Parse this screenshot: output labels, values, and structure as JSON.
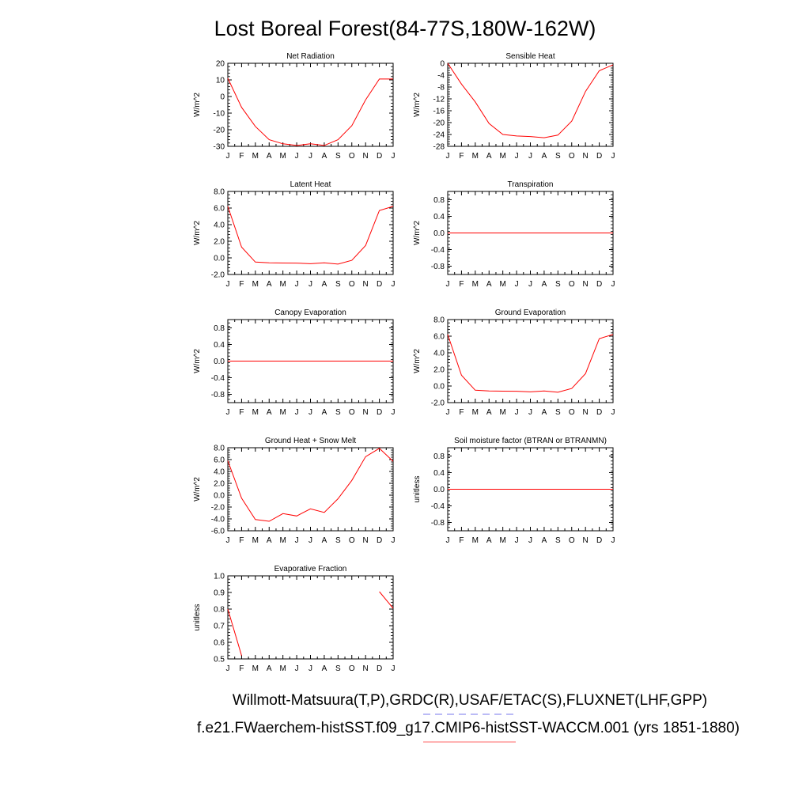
{
  "title": "Lost Boreal Forest(84-77S,180W-162W)",
  "footer": {
    "line1": "Willmott-Matsuura(T,P),GRDC(R),USAF/ETAC(S),FLUXNET(LHF,GPP)",
    "line2": "f.e21.FWaerchem-histSST.f09_g17.CMIP6-histSST-WACCM.001 (yrs 1851-1880)",
    "obs_line_color": "#7777ee",
    "model_line_color": "#ff6666"
  },
  "colors": {
    "series": "#ff0000",
    "axis": "#000000"
  },
  "month_labels": [
    "J",
    "F",
    "M",
    "A",
    "M",
    "J",
    "J",
    "A",
    "S",
    "O",
    "N",
    "D",
    "J"
  ],
  "chart_data": [
    {
      "type": "line",
      "title": "Net Radiation",
      "ylabel": "W/m^2",
      "ylim": [
        -30,
        20
      ],
      "yticks": [
        20,
        10,
        0,
        -10,
        -20,
        -30
      ],
      "ytick_labels": [
        "20",
        "10",
        "0",
        "-10",
        "-20",
        "-30"
      ],
      "x": [
        0,
        1,
        2,
        3,
        4,
        5,
        6,
        7,
        8,
        9,
        10,
        11,
        12
      ],
      "values": [
        11,
        -6.5,
        -18,
        -26,
        -28.5,
        -29.5,
        -28.5,
        -29.5,
        -26,
        -17.5,
        -2,
        10.5,
        10.5
      ]
    },
    {
      "type": "line",
      "title": "Sensible Heat",
      "ylabel": "W/m^2",
      "ylim": [
        -28,
        0
      ],
      "yticks": [
        0,
        -4,
        -8,
        -12,
        -16,
        -20,
        -24,
        -28
      ],
      "ytick_labels": [
        "0",
        "-4",
        "-8",
        "-12",
        "-16",
        "-20",
        "-24",
        "-28"
      ],
      "x": [
        0,
        1,
        2,
        3,
        4,
        5,
        6,
        7,
        8,
        9,
        10,
        11,
        12
      ],
      "values": [
        0,
        -7,
        -13,
        -20.3,
        -24,
        -24.5,
        -24.7,
        -25.1,
        -24.2,
        -19.5,
        -9.5,
        -2.5,
        -0.5
      ]
    },
    {
      "type": "line",
      "title": "Latent Heat",
      "ylabel": "W/m^2",
      "ylim": [
        -2,
        8
      ],
      "yticks": [
        8,
        6,
        4,
        2,
        0,
        -2
      ],
      "ytick_labels": [
        "8.0",
        "6.0",
        "4.0",
        "2.0",
        "0.0",
        "-2.0"
      ],
      "x": [
        0,
        1,
        2,
        3,
        4,
        5,
        6,
        7,
        8,
        9,
        10,
        11,
        12
      ],
      "values": [
        6.2,
        1.3,
        -0.5,
        -0.6,
        -0.62,
        -0.63,
        -0.7,
        -0.6,
        -0.75,
        -0.3,
        1.5,
        5.7,
        6.2
      ]
    },
    {
      "type": "line",
      "title": "Transpiration",
      "ylabel": "W/m^2",
      "ylim": [
        -1,
        1
      ],
      "yticks": [
        0.8,
        0.4,
        0,
        -0.4,
        -0.8
      ],
      "ytick_labels": [
        "0.8",
        "0.4",
        "0.0",
        "-0.4",
        "-0.8"
      ],
      "x": [
        0,
        1,
        2,
        3,
        4,
        5,
        6,
        7,
        8,
        9,
        10,
        11,
        12
      ],
      "values": [
        0,
        0,
        0,
        0,
        0,
        0,
        0,
        0,
        0,
        0,
        0,
        0,
        0
      ]
    },
    {
      "type": "line",
      "title": "Canopy Evaporation",
      "ylabel": "W/m^2",
      "ylim": [
        -1,
        1
      ],
      "yticks": [
        0.8,
        0.4,
        0,
        -0.4,
        -0.8
      ],
      "ytick_labels": [
        "0.8",
        "0.4",
        "0.0",
        "-0.4",
        "-0.8"
      ],
      "x": [
        0,
        1,
        2,
        3,
        4,
        5,
        6,
        7,
        8,
        9,
        10,
        11,
        12
      ],
      "values": [
        0,
        0,
        0,
        0,
        0,
        0,
        0,
        0,
        0,
        0,
        0,
        0,
        0
      ]
    },
    {
      "type": "line",
      "title": "Ground Evaporation",
      "ylabel": "W/m^2",
      "ylim": [
        -2,
        8
      ],
      "yticks": [
        8,
        6,
        4,
        2,
        0,
        -2
      ],
      "ytick_labels": [
        "8.0",
        "6.0",
        "4.0",
        "2.0",
        "0.0",
        "-2.0"
      ],
      "x": [
        0,
        1,
        2,
        3,
        4,
        5,
        6,
        7,
        8,
        9,
        10,
        11,
        12
      ],
      "values": [
        6.2,
        1.3,
        -0.5,
        -0.6,
        -0.62,
        -0.63,
        -0.7,
        -0.6,
        -0.75,
        -0.3,
        1.5,
        5.7,
        6.2
      ]
    },
    {
      "type": "line",
      "title": "Ground Heat + Snow Melt",
      "ylabel": "W/m^2",
      "ylim": [
        -6,
        8
      ],
      "yticks": [
        8,
        6,
        4,
        2,
        0,
        -2,
        -4,
        -6
      ],
      "ytick_labels": [
        "8.0",
        "6.0",
        "4.0",
        "2.0",
        "0.0",
        "-2.0",
        "-4.0",
        "-6.0"
      ],
      "x": [
        0,
        1,
        2,
        3,
        4,
        5,
        6,
        7,
        8,
        9,
        10,
        11,
        12
      ],
      "values": [
        5.8,
        -0.5,
        -4.1,
        -4.4,
        -3.1,
        -3.5,
        -2.3,
        -2.9,
        -0.6,
        2.5,
        6.5,
        7.9,
        5.7
      ]
    },
    {
      "type": "line",
      "title": "Soil moisture factor (BTRAN or BTRANMN)",
      "ylabel": "unitless",
      "ylim": [
        -1,
        1
      ],
      "yticks": [
        0.8,
        0.4,
        0,
        -0.4,
        -0.8
      ],
      "ytick_labels": [
        "0.8",
        "0.4",
        "0.0",
        "-0.4",
        "-0.8"
      ],
      "x": [
        0,
        1,
        2,
        3,
        4,
        5,
        6,
        7,
        8,
        9,
        10,
        11,
        12
      ],
      "values": [
        0,
        0,
        0,
        0,
        0,
        0,
        0,
        0,
        0,
        0,
        0,
        0,
        0
      ]
    },
    {
      "type": "line",
      "title": "Evaporative Fraction",
      "ylabel": "unitless",
      "ylim": [
        0.5,
        1.0
      ],
      "yticks": [
        1.0,
        0.9,
        0.8,
        0.7,
        0.6,
        0.5
      ],
      "ytick_labels": [
        "1.0",
        "0.9",
        "0.8",
        "0.7",
        "0.6",
        "0.5"
      ],
      "x": [
        0,
        1,
        2,
        3,
        4,
        5,
        6,
        7,
        8,
        9,
        10,
        11,
        12
      ],
      "values": [
        0.8,
        0.52,
        null,
        null,
        null,
        null,
        null,
        null,
        null,
        null,
        null,
        0.905,
        0.805
      ]
    }
  ]
}
